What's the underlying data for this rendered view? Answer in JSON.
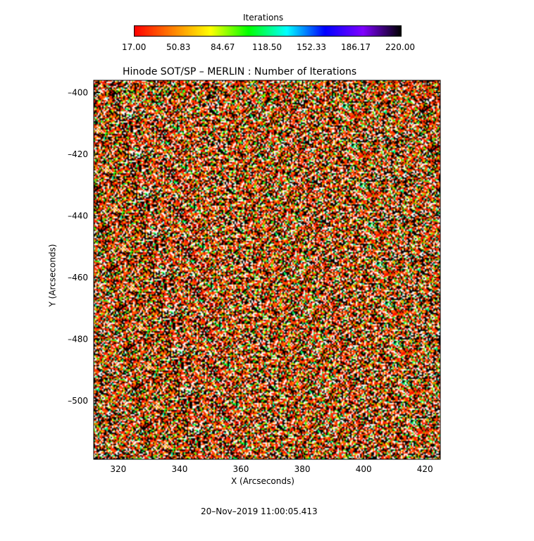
{
  "colorbar": {
    "title": "Iterations",
    "ticks": [
      "17.00",
      "50.83",
      "84.67",
      "118.50",
      "152.33",
      "186.17",
      "220.00"
    ],
    "min": 17.0,
    "max": 220.0,
    "colormap": [
      "#ff0000",
      "#ff8000",
      "#ffff00",
      "#00ff00",
      "#00ffff",
      "#0000ff",
      "#8000ff",
      "#000000"
    ]
  },
  "chart_data": {
    "type": "heatmap",
    "title": "Hinode SOT/SP – MERLIN : Number of Iterations",
    "xlabel": "X (Arcseconds)",
    "ylabel": "Y (Arcseconds)",
    "xlim": [
      312,
      425
    ],
    "ylim": [
      -519,
      -396
    ],
    "xticks": [
      320,
      340,
      360,
      380,
      400,
      420
    ],
    "yticks": [
      -400,
      -420,
      -440,
      -460,
      -480,
      -500
    ],
    "value_range": [
      17.0,
      220.0
    ],
    "description": "Noisy per-pixel iteration counts; dominated by low (red/orange), high (black) and saturated (white) values"
  },
  "footer": {
    "timestamp": "20–Nov–2019 11:00:05.413"
  },
  "colors": {
    "background": "#ffffff",
    "saturated": "#ffffff",
    "axis": "#000000"
  }
}
